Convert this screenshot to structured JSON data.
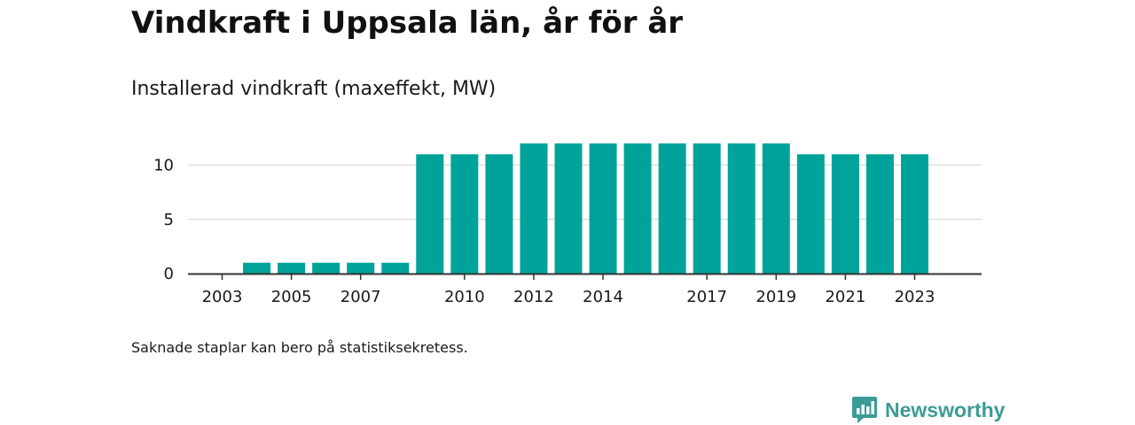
{
  "header": {
    "title": "Vindkraft i Uppsala län, år för år",
    "subtitle": "Installerad vindkraft (maxeffekt, MW)"
  },
  "footer": {
    "note": "Saknade staplar kan bero på statistiksekretess.",
    "brand": "Newsworthy"
  },
  "colors": {
    "bar": "#00a39a",
    "grid": "#d9d9d9",
    "axis": "#333333",
    "brand": "#3b9c95"
  },
  "chart_data": {
    "type": "bar",
    "title": "Vindkraft i Uppsala län, år för år",
    "subtitle": "Installerad vindkraft (maxeffekt, MW)",
    "xlabel": "",
    "ylabel": "",
    "categories": [
      2003,
      2004,
      2005,
      2006,
      2007,
      2008,
      2009,
      2010,
      2011,
      2012,
      2013,
      2014,
      2015,
      2016,
      2017,
      2018,
      2019,
      2020,
      2021,
      2022,
      2023
    ],
    "values": [
      0,
      1,
      1,
      1,
      1,
      1,
      11,
      11,
      11,
      12,
      12,
      12,
      12,
      12,
      12,
      12,
      12,
      11,
      11,
      11,
      11
    ],
    "x_tick_labels": [
      "2003",
      "2005",
      "2007",
      "2010",
      "2012",
      "2014",
      "2017",
      "2019",
      "2021",
      "2023"
    ],
    "y_ticks": [
      0,
      5,
      10
    ],
    "ylim": [
      0,
      12
    ],
    "grid": true,
    "legend": "none"
  }
}
